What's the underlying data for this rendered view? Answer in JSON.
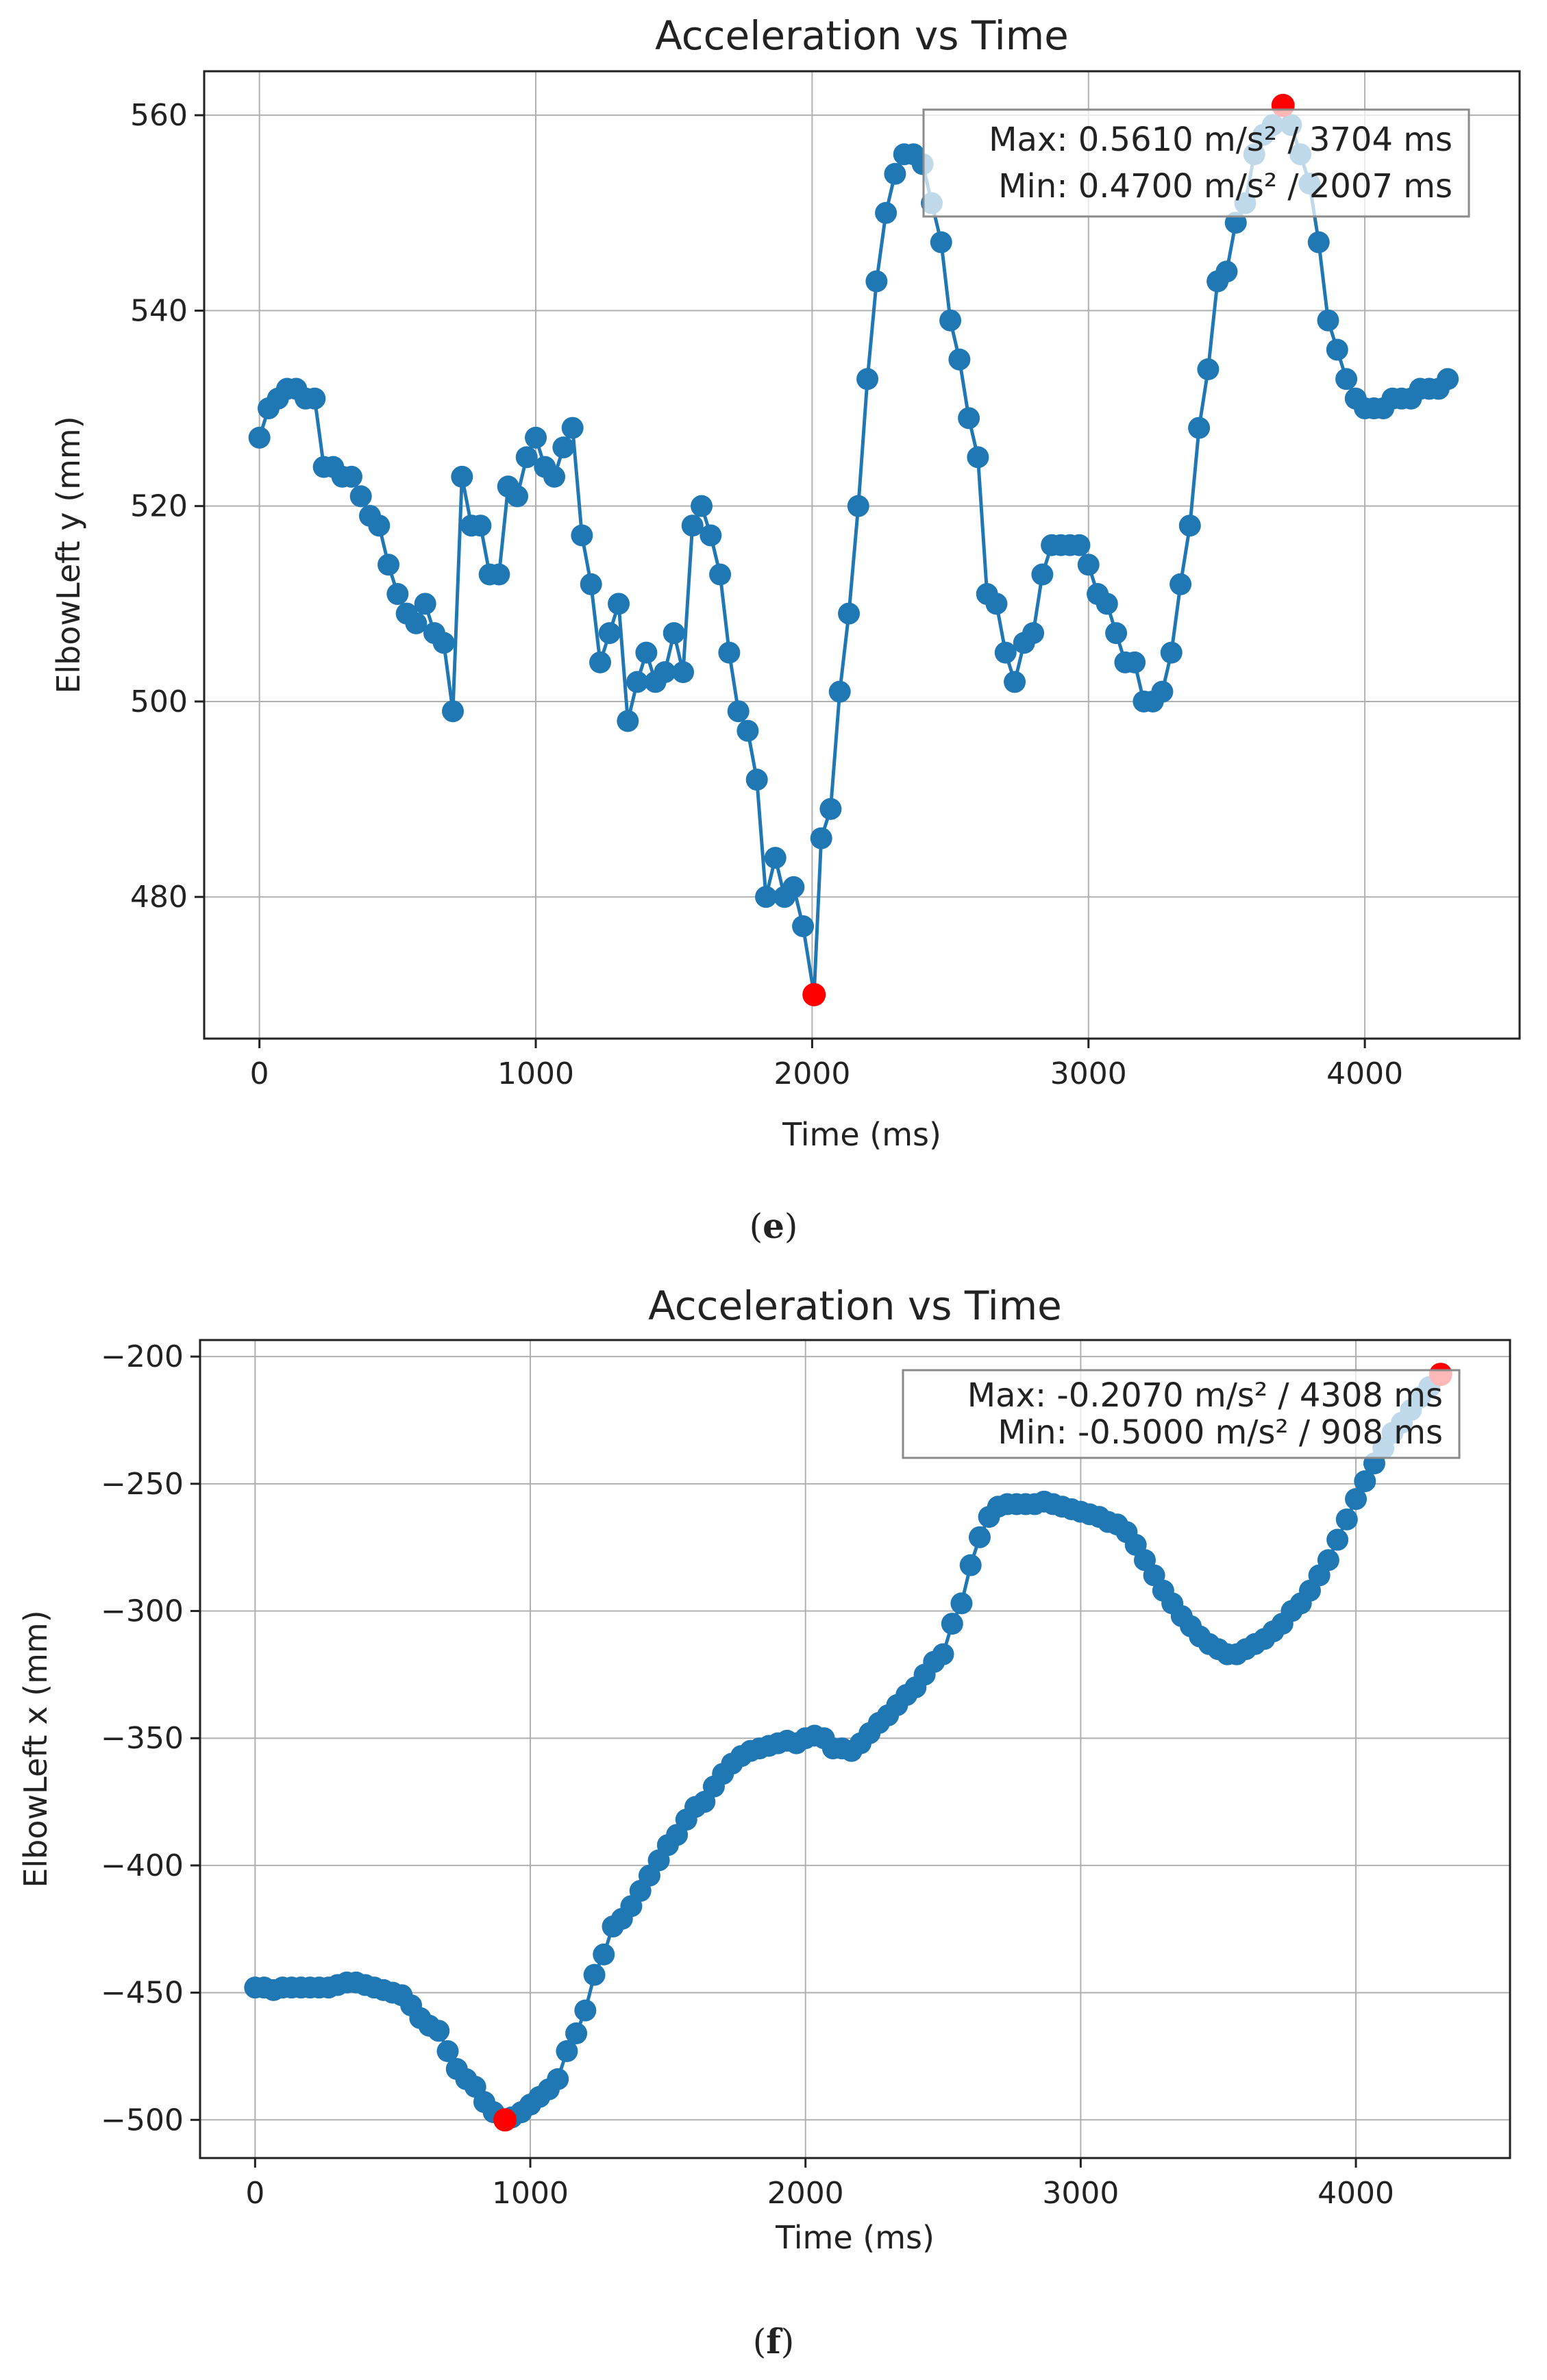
{
  "chart_data": [
    {
      "type": "line",
      "title": "Acceleration vs Time",
      "xlabel": "Time (ms)",
      "ylabel": "ElbowLeft y (mm)",
      "xlim": [
        -200,
        4560
      ],
      "ylim": [
        465.5,
        564.5
      ],
      "xticks": [
        0,
        1000,
        2000,
        3000,
        4000
      ],
      "xtick_labels": [
        "0",
        "1000",
        "2000",
        "3000",
        "4000"
      ],
      "yticks": [
        480,
        500,
        520,
        540,
        560
      ],
      "ytick_labels": [
        "480",
        "500",
        "520",
        "540",
        "560"
      ],
      "grid": true,
      "caption_letter": "e",
      "color": "#1f77b4",
      "marker_color": "#ff0000",
      "legend": {
        "placement": "top-right",
        "lines": [
          "Max: 0.5610 m/s² / 3704 ms",
          "Min: 0.4700 m/s² / 2007 ms"
        ]
      },
      "max_point": {
        "x": 3704,
        "y": 561
      },
      "min_point": {
        "x": 2007,
        "y": 470
      },
      "series": [
        {
          "name": "ElbowLeft y",
          "x": [
            0,
            33,
            67,
            100,
            133,
            167,
            200,
            233,
            267,
            300,
            333,
            367,
            400,
            433,
            467,
            500,
            533,
            567,
            600,
            633,
            667,
            700,
            733,
            767,
            800,
            833,
            867,
            900,
            933,
            967,
            1000,
            1033,
            1067,
            1100,
            1133,
            1167,
            1200,
            1233,
            1267,
            1300,
            1333,
            1367,
            1400,
            1433,
            1467,
            1500,
            1533,
            1567,
            1600,
            1633,
            1667,
            1700,
            1733,
            1767,
            1800,
            1833,
            1867,
            1900,
            1933,
            1967,
            2007,
            2033,
            2067,
            2100,
            2133,
            2167,
            2200,
            2233,
            2267,
            2300,
            2333,
            2367,
            2400,
            2433,
            2467,
            2500,
            2533,
            2567,
            2600,
            2633,
            2667,
            2700,
            2733,
            2767,
            2800,
            2833,
            2867,
            2900,
            2933,
            2967,
            3000,
            3033,
            3067,
            3100,
            3133,
            3167,
            3200,
            3233,
            3267,
            3300,
            3333,
            3367,
            3400,
            3433,
            3467,
            3500,
            3533,
            3567,
            3600,
            3633,
            3667,
            3704,
            3733,
            3767,
            3800,
            3833,
            3867,
            3900,
            3933,
            3967,
            4000,
            4033,
            4067,
            4100,
            4133,
            4167,
            4200,
            4233,
            4267,
            4300
          ],
          "y": [
            527,
            530,
            531,
            532,
            532,
            531,
            531,
            524,
            524,
            523,
            523,
            521,
            519,
            518,
            514,
            511,
            509,
            508,
            510,
            507,
            506,
            499,
            523,
            518,
            518,
            513,
            513,
            522,
            521,
            525,
            527,
            524,
            523,
            526,
            528,
            517,
            512,
            504,
            507,
            510,
            498,
            502,
            505,
            502,
            503,
            507,
            503,
            518,
            520,
            517,
            513,
            505,
            499,
            497,
            492,
            480,
            484,
            480,
            481,
            477,
            470,
            486,
            489,
            501,
            509,
            520,
            533,
            543,
            550,
            554,
            556,
            556,
            555,
            551,
            547,
            539,
            535,
            529,
            525,
            511,
            510,
            505,
            502,
            506,
            507,
            513,
            516,
            516,
            516,
            516,
            514,
            511,
            510,
            507,
            504,
            504,
            500,
            500,
            501,
            505,
            512,
            518,
            528,
            534,
            543,
            544,
            549,
            551,
            556,
            558,
            559,
            561,
            559,
            556,
            553,
            547,
            539,
            536,
            533,
            531,
            530,
            530,
            530,
            531,
            531,
            531,
            532,
            532,
            532,
            533
          ]
        }
      ]
    },
    {
      "type": "line",
      "title": "Acceleration vs Time",
      "xlabel": "Time (ms)",
      "ylabel": "ElbowLeft x (mm)",
      "xlim": [
        -200,
        4560
      ],
      "ylim": [
        -515,
        -193.5
      ],
      "xticks": [
        0,
        1000,
        2000,
        3000,
        4000
      ],
      "xtick_labels": [
        "0",
        "1000",
        "2000",
        "3000",
        "4000"
      ],
      "yticks": [
        -500,
        -450,
        -400,
        -350,
        -300,
        -250,
        -200
      ],
      "ytick_labels": [
        "−500",
        "−450",
        "−400",
        "−350",
        "−300",
        "−250",
        "−200"
      ],
      "grid": true,
      "caption_letter": "f",
      "color": "#1f77b4",
      "marker_color": "#ff0000",
      "legend": {
        "placement": "top-right",
        "lines": [
          "Max: -0.2070 m/s² / 4308 ms",
          "Min: -0.5000 m/s² / 908 ms"
        ]
      },
      "max_point": {
        "x": 4308,
        "y": -207
      },
      "min_point": {
        "x": 908,
        "y": -500
      },
      "series": [
        {
          "name": "ElbowLeft x",
          "x": [
            0,
            33,
            67,
            100,
            133,
            167,
            200,
            233,
            267,
            300,
            333,
            367,
            400,
            433,
            467,
            500,
            533,
            567,
            600,
            633,
            667,
            700,
            733,
            767,
            800,
            833,
            867,
            908,
            933,
            967,
            1000,
            1033,
            1067,
            1100,
            1133,
            1167,
            1200,
            1233,
            1267,
            1300,
            1333,
            1367,
            1400,
            1433,
            1467,
            1500,
            1533,
            1567,
            1600,
            1633,
            1667,
            1700,
            1733,
            1767,
            1800,
            1833,
            1867,
            1900,
            1933,
            1967,
            2000,
            2033,
            2067,
            2100,
            2133,
            2167,
            2200,
            2233,
            2267,
            2300,
            2333,
            2367,
            2400,
            2433,
            2467,
            2500,
            2533,
            2567,
            2600,
            2633,
            2667,
            2700,
            2733,
            2767,
            2800,
            2833,
            2867,
            2900,
            2933,
            2967,
            3000,
            3033,
            3067,
            3100,
            3133,
            3167,
            3200,
            3233,
            3267,
            3300,
            3333,
            3367,
            3400,
            3433,
            3467,
            3500,
            3533,
            3567,
            3600,
            3633,
            3667,
            3700,
            3733,
            3767,
            3800,
            3833,
            3867,
            3900,
            3933,
            3967,
            4000,
            4033,
            4067,
            4100,
            4133,
            4167,
            4200,
            4233,
            4267,
            4308
          ],
          "y": [
            -448,
            -448,
            -449,
            -448,
            -448,
            -448,
            -448,
            -448,
            -448,
            -447,
            -446,
            -446,
            -447,
            -448,
            -449,
            -450,
            -451,
            -455,
            -460,
            -463,
            -465,
            -473,
            -480,
            -484,
            -487,
            -493,
            -497,
            -500,
            -499,
            -497,
            -494,
            -491,
            -488,
            -484,
            -473,
            -466,
            -457,
            -443,
            -435,
            -424,
            -421,
            -416,
            -410,
            -404,
            -398,
            -392,
            -388,
            -382,
            -377,
            -375,
            -369,
            -364,
            -360,
            -357,
            -355,
            -354,
            -353,
            -352,
            -351,
            -352,
            -350,
            -349,
            -350,
            -354,
            -354,
            -355,
            -352,
            -348,
            -344,
            -341,
            -337,
            -333,
            -330,
            -325,
            -320,
            -317,
            -305,
            -297,
            -282,
            -271,
            -263,
            -259,
            -258,
            -258,
            -258,
            -258,
            -257,
            -258,
            -259,
            -260,
            -261,
            -262,
            -263,
            -265,
            -266,
            -269,
            -274,
            -280,
            -286,
            -292,
            -297,
            -302,
            -306,
            -310,
            -313,
            -315,
            -317,
            -317,
            -315,
            -313,
            -311,
            -308,
            -305,
            -300,
            -297,
            -292,
            -286,
            -280,
            -272,
            -264,
            -256,
            -249,
            -242,
            -236,
            -230,
            -226,
            -221,
            -216,
            -212,
            -207
          ]
        }
      ]
    }
  ]
}
